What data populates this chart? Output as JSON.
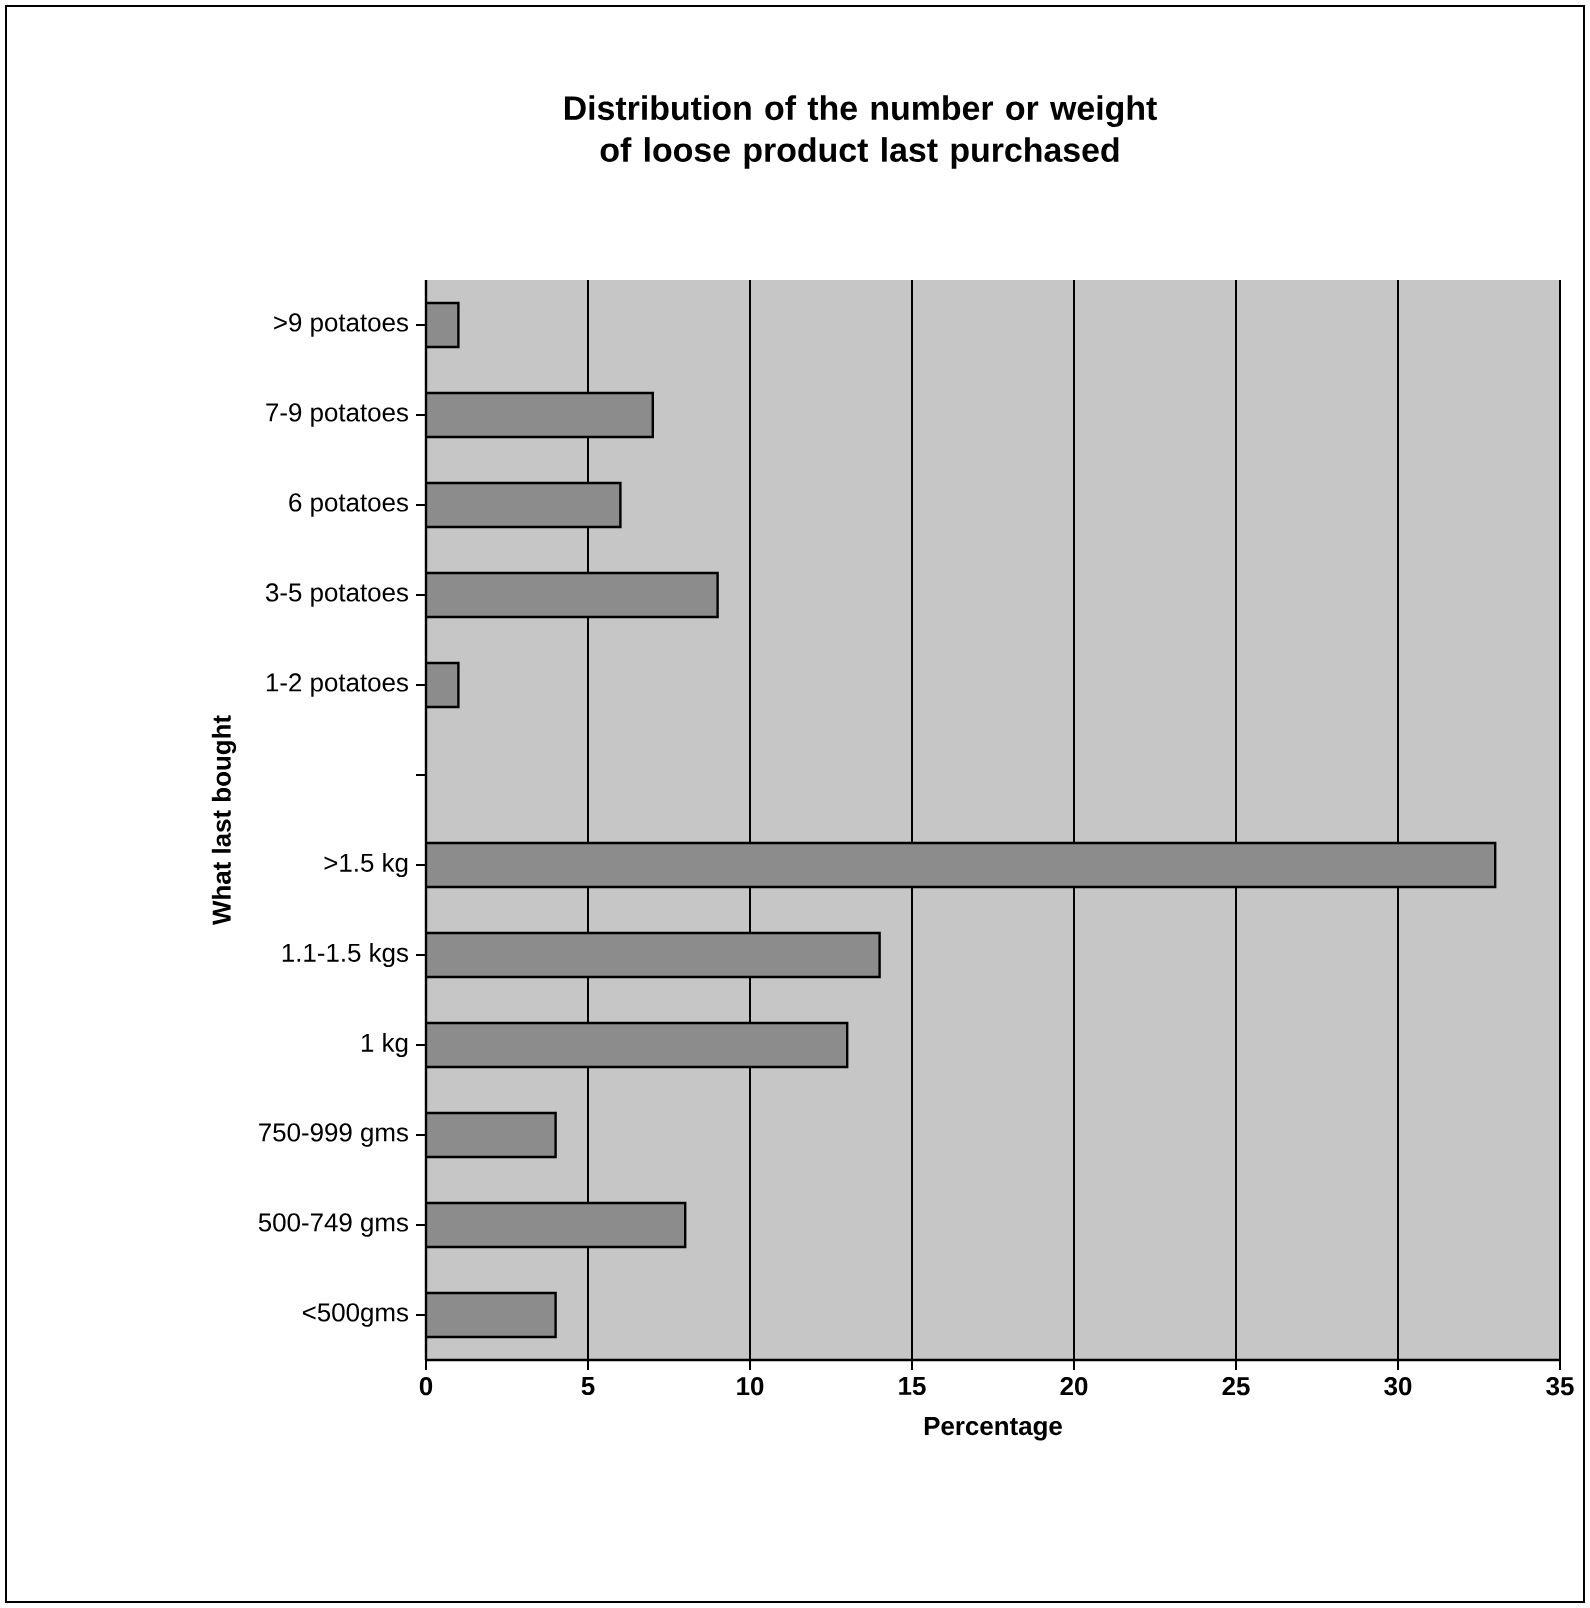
{
  "chart_data": {
    "type": "bar",
    "orientation": "horizontal",
    "title": "Distribution of the number or weight of loose product last purchased",
    "xlabel": "Percentage",
    "ylabel": "What last bought",
    "categories": [
      ">9 potatoes",
      "7-9 potatoes",
      "6 potatoes",
      "3-5 potatoes",
      "1-2 potatoes",
      null,
      ">1.5 kg",
      "1.1-1.5 kgs",
      "1 kg",
      "750-999 gms",
      "500-749 gms",
      "<500gms"
    ],
    "values": [
      1,
      7,
      6,
      9,
      1,
      null,
      33,
      14,
      13,
      4,
      8,
      4
    ],
    "color": "#8c8c8c",
    "xlim": [
      0,
      35
    ],
    "xticks": [
      0,
      5,
      10,
      15,
      20,
      25,
      30,
      35
    ],
    "grid": "x"
  }
}
